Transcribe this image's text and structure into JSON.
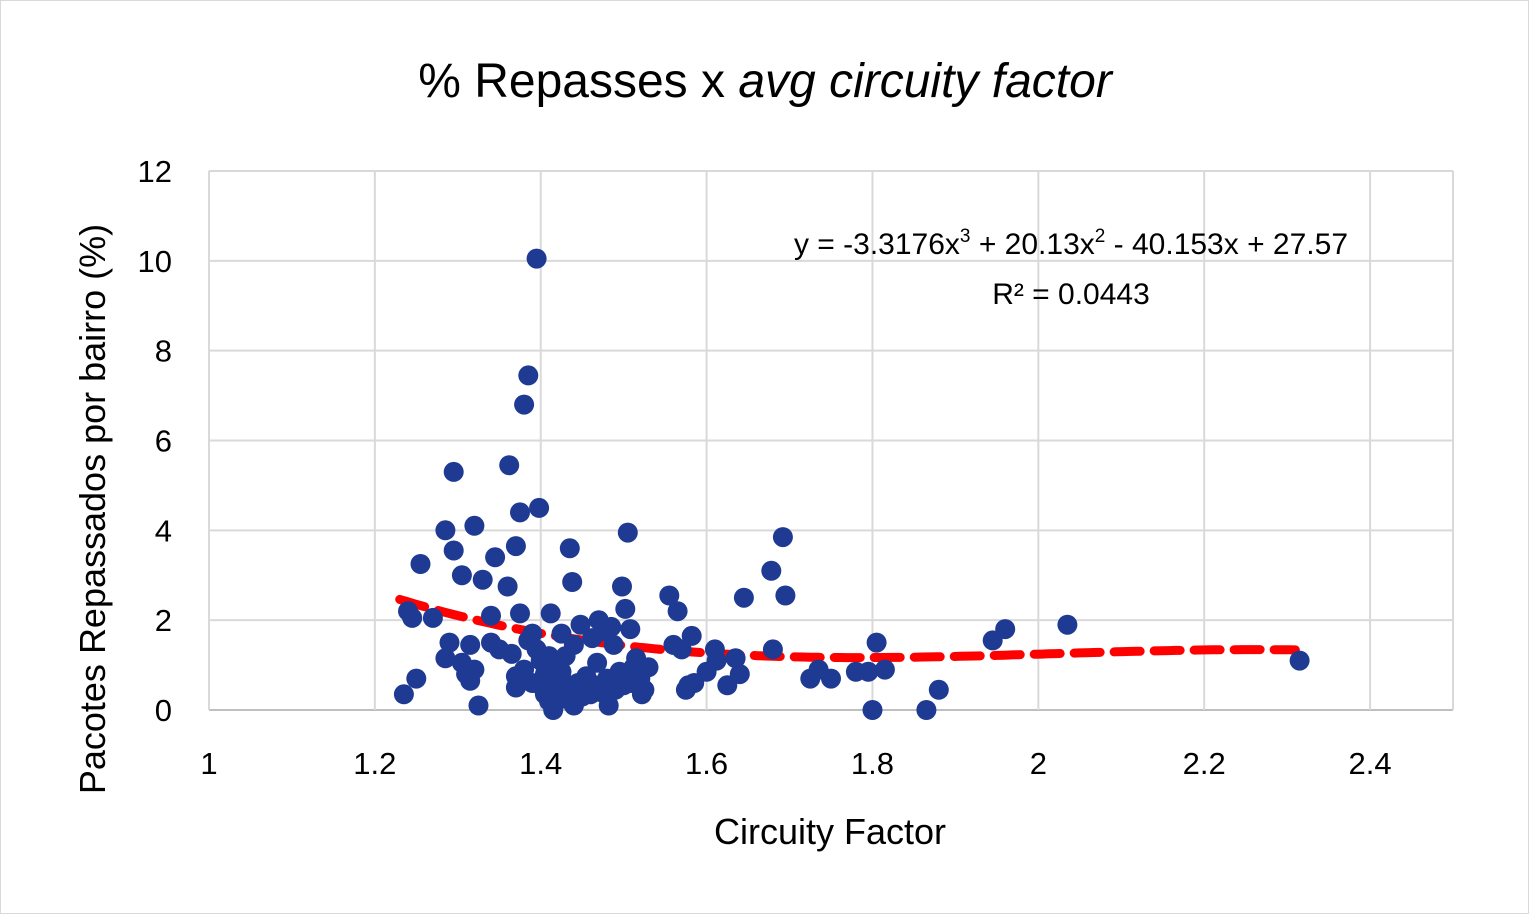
{
  "chart_data": {
    "type": "scatter",
    "title": "% Repasses x ",
    "title_italic": "avg circuity factor",
    "xlabel": "Circuity Factor",
    "ylabel": "Pacotes Repassados por bairro (%)",
    "xlim": [
      1,
      2.5
    ],
    "ylim": [
      0,
      12
    ],
    "x_ticks": [
      "1",
      "1.2",
      "1.4",
      "1.6",
      "1.8",
      "2",
      "2.2",
      "2.4"
    ],
    "y_ticks": [
      "0",
      "2",
      "4",
      "6",
      "8",
      "10",
      "12"
    ],
    "grid": true,
    "point_color": "#1f3a93",
    "trendline_color": "#ff0000",
    "trendline": {
      "type": "polynomial",
      "order": 3,
      "coefficients": [
        -3.3176,
        20.13,
        -40.153,
        27.57
      ],
      "x_range": [
        1.23,
        2.31
      ],
      "equation_prefix": "y = -3.3176x",
      "equation_sup1": "3",
      "equation_mid": " + 20.13x",
      "equation_sup2": "2",
      "equation_suffix": " - 40.153x + 27.57",
      "r_squared": "R² = 0.0443"
    },
    "points": [
      [
        1.235,
        0.35
      ],
      [
        1.24,
        2.2
      ],
      [
        1.245,
        2.05
      ],
      [
        1.25,
        0.7
      ],
      [
        1.255,
        3.25
      ],
      [
        1.27,
        2.05
      ],
      [
        1.285,
        4.0
      ],
      [
        1.285,
        1.15
      ],
      [
        1.29,
        1.5
      ],
      [
        1.295,
        5.3
      ],
      [
        1.295,
        3.55
      ],
      [
        1.305,
        3.0
      ],
      [
        1.305,
        1.05
      ],
      [
        1.31,
        0.8
      ],
      [
        1.315,
        1.45
      ],
      [
        1.315,
        0.65
      ],
      [
        1.32,
        4.1
      ],
      [
        1.32,
        0.9
      ],
      [
        1.325,
        0.1
      ],
      [
        1.33,
        2.9
      ],
      [
        1.34,
        2.1
      ],
      [
        1.34,
        1.5
      ],
      [
        1.345,
        3.4
      ],
      [
        1.35,
        1.35
      ],
      [
        1.36,
        2.75
      ],
      [
        1.362,
        5.45
      ],
      [
        1.365,
        1.25
      ],
      [
        1.37,
        3.65
      ],
      [
        1.37,
        0.75
      ],
      [
        1.37,
        0.5
      ],
      [
        1.375,
        4.4
      ],
      [
        1.375,
        2.15
      ],
      [
        1.38,
        6.8
      ],
      [
        1.38,
        0.9
      ],
      [
        1.385,
        7.45
      ],
      [
        1.385,
        1.55
      ],
      [
        1.39,
        1.7
      ],
      [
        1.39,
        0.6
      ],
      [
        1.395,
        10.05
      ],
      [
        1.395,
        1.35
      ],
      [
        1.398,
        4.5
      ],
      [
        1.4,
        1.1
      ],
      [
        1.4,
        0.55
      ],
      [
        1.405,
        0.35
      ],
      [
        1.405,
        0.8
      ],
      [
        1.41,
        1.2
      ],
      [
        1.41,
        0.2
      ],
      [
        1.412,
        2.15
      ],
      [
        1.415,
        0.95
      ],
      [
        1.415,
        0.0
      ],
      [
        1.42,
        0.65
      ],
      [
        1.42,
        0.4
      ],
      [
        1.425,
        1.7
      ],
      [
        1.425,
        0.85
      ],
      [
        1.43,
        0.25
      ],
      [
        1.43,
        1.2
      ],
      [
        1.435,
        3.6
      ],
      [
        1.435,
        0.55
      ],
      [
        1.438,
        2.85
      ],
      [
        1.44,
        0.1
      ],
      [
        1.44,
        1.45
      ],
      [
        1.445,
        0.6
      ],
      [
        1.448,
        1.9
      ],
      [
        1.45,
        0.3
      ],
      [
        1.455,
        0.75
      ],
      [
        1.46,
        0.35
      ],
      [
        1.462,
        1.6
      ],
      [
        1.465,
        0.55
      ],
      [
        1.468,
        1.05
      ],
      [
        1.47,
        2.0
      ],
      [
        1.472,
        0.4
      ],
      [
        1.475,
        1.75
      ],
      [
        1.48,
        0.7
      ],
      [
        1.482,
        0.1
      ],
      [
        1.485,
        1.85
      ],
      [
        1.488,
        1.45
      ],
      [
        1.49,
        0.45
      ],
      [
        1.495,
        0.85
      ],
      [
        1.498,
        2.75
      ],
      [
        1.5,
        0.55
      ],
      [
        1.502,
        2.25
      ],
      [
        1.505,
        3.95
      ],
      [
        1.508,
        1.8
      ],
      [
        1.51,
        0.6
      ],
      [
        1.512,
        0.95
      ],
      [
        1.515,
        1.15
      ],
      [
        1.52,
        0.7
      ],
      [
        1.522,
        0.35
      ],
      [
        1.525,
        0.45
      ],
      [
        1.53,
        0.95
      ],
      [
        1.555,
        2.55
      ],
      [
        1.56,
        1.45
      ],
      [
        1.565,
        2.2
      ],
      [
        1.57,
        1.35
      ],
      [
        1.575,
        0.45
      ],
      [
        1.578,
        0.55
      ],
      [
        1.582,
        1.65
      ],
      [
        1.585,
        0.6
      ],
      [
        1.6,
        0.85
      ],
      [
        1.61,
        1.35
      ],
      [
        1.612,
        1.1
      ],
      [
        1.625,
        0.55
      ],
      [
        1.635,
        1.15
      ],
      [
        1.64,
        0.8
      ],
      [
        1.645,
        2.5
      ],
      [
        1.678,
        3.1
      ],
      [
        1.68,
        1.35
      ],
      [
        1.692,
        3.85
      ],
      [
        1.695,
        2.55
      ],
      [
        1.725,
        0.7
      ],
      [
        1.735,
        0.9
      ],
      [
        1.75,
        0.7
      ],
      [
        1.78,
        0.85
      ],
      [
        1.795,
        0.85
      ],
      [
        1.8,
        0.0
      ],
      [
        1.805,
        1.5
      ],
      [
        1.815,
        0.9
      ],
      [
        1.865,
        0.0
      ],
      [
        1.88,
        0.45
      ],
      [
        1.945,
        1.55
      ],
      [
        1.96,
        1.8
      ],
      [
        2.035,
        1.9
      ],
      [
        2.315,
        1.1
      ]
    ]
  }
}
